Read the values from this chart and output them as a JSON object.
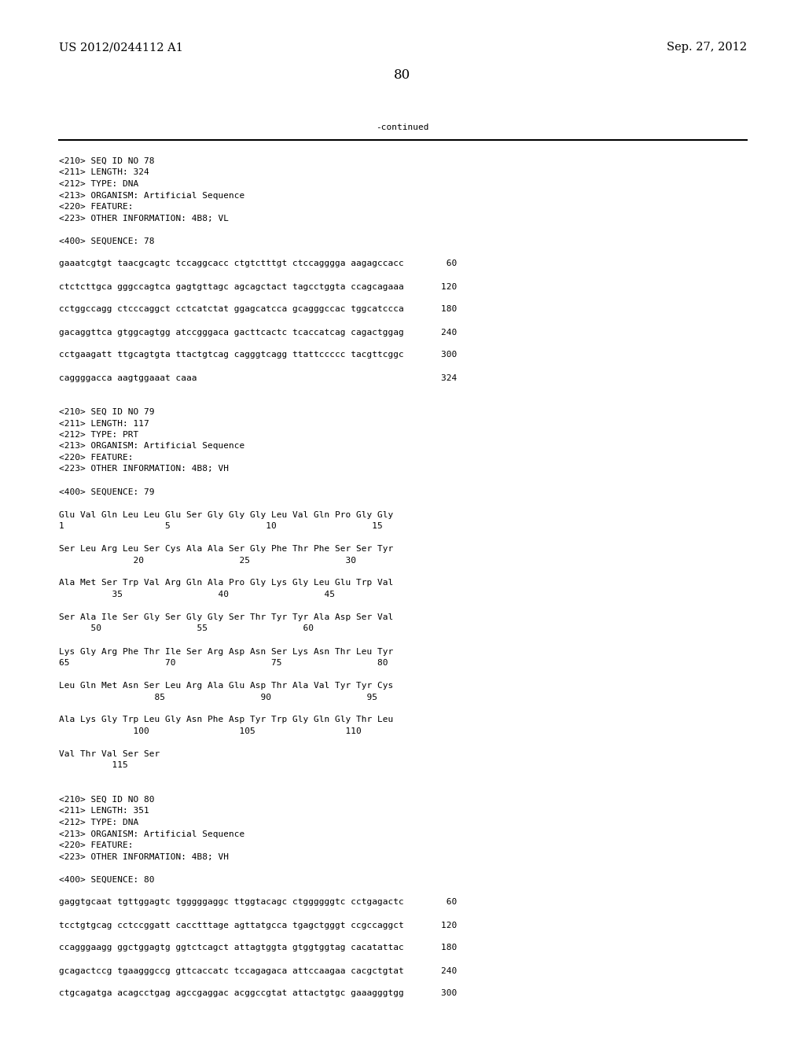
{
  "header_left": "US 2012/0244112 A1",
  "header_right": "Sep. 27, 2012",
  "page_number": "80",
  "continued_label": "-continued",
  "background_color": "#ffffff",
  "text_color": "#000000",
  "font_size_header": 10.5,
  "font_size_page": 12,
  "font_size_body": 8.0,
  "lines": [
    {
      "text": "<210> SEQ ID NO 78",
      "blank": false
    },
    {
      "text": "<211> LENGTH: 324",
      "blank": false
    },
    {
      "text": "<212> TYPE: DNA",
      "blank": false
    },
    {
      "text": "<213> ORGANISM: Artificial Sequence",
      "blank": false
    },
    {
      "text": "<220> FEATURE:",
      "blank": false
    },
    {
      "text": "<223> OTHER INFORMATION: 4B8; VL",
      "blank": false
    },
    {
      "text": "",
      "blank": true
    },
    {
      "text": "<400> SEQUENCE: 78",
      "blank": false
    },
    {
      "text": "",
      "blank": true
    },
    {
      "text": "gaaatcgtgt taacgcagtc tccaggcacc ctgtctttgt ctccagggga aagagccacc        60",
      "blank": false
    },
    {
      "text": "",
      "blank": true
    },
    {
      "text": "ctctcttgca gggccagtca gagtgttagc agcagctact tagcctggta ccagcagaaa       120",
      "blank": false
    },
    {
      "text": "",
      "blank": true
    },
    {
      "text": "cctggccagg ctcccaggct cctcatctat ggagcatcca gcagggccac tggcatccca       180",
      "blank": false
    },
    {
      "text": "",
      "blank": true
    },
    {
      "text": "gacaggttca gtggcagtgg atccgggaca gacttcactc tcaccatcag cagactggag       240",
      "blank": false
    },
    {
      "text": "",
      "blank": true
    },
    {
      "text": "cctgaagatt ttgcagtgta ttactgtcag cagggtcagg ttattccccc tacgttcggc       300",
      "blank": false
    },
    {
      "text": "",
      "blank": true
    },
    {
      "text": "caggggacca aagtggaaat caaa                                              324",
      "blank": false
    },
    {
      "text": "",
      "blank": true
    },
    {
      "text": "",
      "blank": true
    },
    {
      "text": "<210> SEQ ID NO 79",
      "blank": false
    },
    {
      "text": "<211> LENGTH: 117",
      "blank": false
    },
    {
      "text": "<212> TYPE: PRT",
      "blank": false
    },
    {
      "text": "<213> ORGANISM: Artificial Sequence",
      "blank": false
    },
    {
      "text": "<220> FEATURE:",
      "blank": false
    },
    {
      "text": "<223> OTHER INFORMATION: 4B8; VH",
      "blank": false
    },
    {
      "text": "",
      "blank": true
    },
    {
      "text": "<400> SEQUENCE: 79",
      "blank": false
    },
    {
      "text": "",
      "blank": true
    },
    {
      "text": "Glu Val Gln Leu Leu Glu Ser Gly Gly Gly Leu Val Gln Pro Gly Gly",
      "blank": false
    },
    {
      "text": "1                   5                  10                  15",
      "blank": false
    },
    {
      "text": "",
      "blank": true
    },
    {
      "text": "Ser Leu Arg Leu Ser Cys Ala Ala Ser Gly Phe Thr Phe Ser Ser Tyr",
      "blank": false
    },
    {
      "text": "              20                  25                  30",
      "blank": false
    },
    {
      "text": "",
      "blank": true
    },
    {
      "text": "Ala Met Ser Trp Val Arg Gln Ala Pro Gly Lys Gly Leu Glu Trp Val",
      "blank": false
    },
    {
      "text": "          35                  40                  45",
      "blank": false
    },
    {
      "text": "",
      "blank": true
    },
    {
      "text": "Ser Ala Ile Ser Gly Ser Gly Gly Ser Thr Tyr Tyr Ala Asp Ser Val",
      "blank": false
    },
    {
      "text": "      50                  55                  60",
      "blank": false
    },
    {
      "text": "",
      "blank": true
    },
    {
      "text": "Lys Gly Arg Phe Thr Ile Ser Arg Asp Asn Ser Lys Asn Thr Leu Tyr",
      "blank": false
    },
    {
      "text": "65                  70                  75                  80",
      "blank": false
    },
    {
      "text": "",
      "blank": true
    },
    {
      "text": "Leu Gln Met Asn Ser Leu Arg Ala Glu Asp Thr Ala Val Tyr Tyr Cys",
      "blank": false
    },
    {
      "text": "                  85                  90                  95",
      "blank": false
    },
    {
      "text": "",
      "blank": true
    },
    {
      "text": "Ala Lys Gly Trp Leu Gly Asn Phe Asp Tyr Trp Gly Gln Gly Thr Leu",
      "blank": false
    },
    {
      "text": "              100                 105                 110",
      "blank": false
    },
    {
      "text": "",
      "blank": true
    },
    {
      "text": "Val Thr Val Ser Ser",
      "blank": false
    },
    {
      "text": "          115",
      "blank": false
    },
    {
      "text": "",
      "blank": true
    },
    {
      "text": "",
      "blank": true
    },
    {
      "text": "<210> SEQ ID NO 80",
      "blank": false
    },
    {
      "text": "<211> LENGTH: 351",
      "blank": false
    },
    {
      "text": "<212> TYPE: DNA",
      "blank": false
    },
    {
      "text": "<213> ORGANISM: Artificial Sequence",
      "blank": false
    },
    {
      "text": "<220> FEATURE:",
      "blank": false
    },
    {
      "text": "<223> OTHER INFORMATION: 4B8; VH",
      "blank": false
    },
    {
      "text": "",
      "blank": true
    },
    {
      "text": "<400> SEQUENCE: 80",
      "blank": false
    },
    {
      "text": "",
      "blank": true
    },
    {
      "text": "gaggtgcaat tgttggagtc tgggggaggc ttggtacagc ctggggggtc cctgagactc        60",
      "blank": false
    },
    {
      "text": "",
      "blank": true
    },
    {
      "text": "tcctgtgcag cctccggatt cacctttage agttatgcca tgagctgggt ccgccaggct       120",
      "blank": false
    },
    {
      "text": "",
      "blank": true
    },
    {
      "text": "ccagggaagg ggctggagtg ggtctcagct attagtggta gtggtggtag cacatattac       180",
      "blank": false
    },
    {
      "text": "",
      "blank": true
    },
    {
      "text": "gcagactccg tgaagggccg gttcaccatc tccagagaca attccaagaa cacgctgtat       240",
      "blank": false
    },
    {
      "text": "",
      "blank": true
    },
    {
      "text": "ctgcagatga acagcctgag agccgaggac acggccgtat attactgtgc gaaagggtgg       300",
      "blank": false
    }
  ]
}
